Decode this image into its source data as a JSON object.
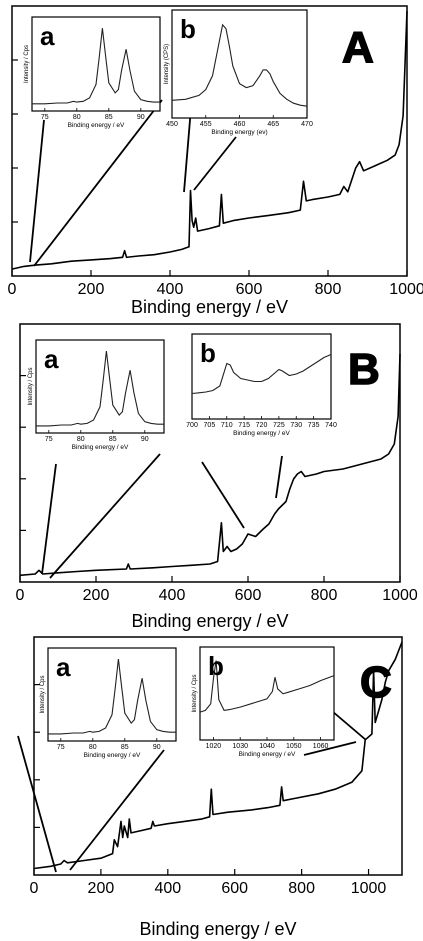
{
  "chart_data": [
    {
      "type": "line",
      "panel_label": "A",
      "xlabel": "Binding energy / eV",
      "ylabel": "",
      "xlim": [
        0,
        1000
      ],
      "xticks": [
        "0",
        "200",
        "400",
        "600",
        "800",
        "1000"
      ],
      "series": [
        {
          "x": [
            0,
            30,
            60,
            100,
            150,
            200,
            250,
            280,
            285,
            290,
            320,
            360,
            400,
            430,
            448,
            452,
            456,
            460,
            465,
            470,
            500,
            525,
            530,
            535,
            560,
            600,
            650,
            700,
            730,
            738,
            745,
            760,
            800,
            830,
            840,
            850,
            870,
            880,
            890,
            920,
            950,
            970,
            980,
            990,
            1000
          ],
          "y": [
            3,
            5,
            6,
            7,
            9,
            10,
            11,
            12,
            17,
            12,
            13,
            14,
            16,
            18,
            20,
            63,
            40,
            35,
            42,
            32,
            34,
            36,
            60,
            38,
            40,
            42,
            44,
            46,
            48,
            70,
            55,
            56,
            58,
            60,
            66,
            62,
            80,
            85,
            78,
            82,
            86,
            90,
            98,
            120,
            200
          ]
        }
      ],
      "insets": [
        {
          "label": "a",
          "ylabel": "Intensity / Cps",
          "xlabel": "Binding energy / eV",
          "xlim": [
            73,
            93
          ],
          "xticks": [
            "75",
            "80",
            "85",
            "90"
          ],
          "x": [
            73,
            75,
            77,
            78.5,
            79.5,
            80,
            81,
            82,
            83,
            83.5,
            84,
            84.5,
            85,
            86,
            86.5,
            87,
            87.7,
            88.3,
            89,
            90,
            91,
            92,
            93
          ],
          "y": [
            5,
            5,
            6,
            6,
            8,
            7,
            8,
            12,
            28,
            60,
            95,
            62,
            30,
            18,
            22,
            45,
            70,
            45,
            20,
            10,
            8,
            7,
            7
          ]
        },
        {
          "label": "b",
          "ylabel": "Intensity (CPS)",
          "xlabel": "Binding energy (ev)",
          "xlim": [
            450,
            470
          ],
          "xticks": [
            "450",
            "455",
            "460",
            "465",
            "470"
          ],
          "x": [
            450,
            452,
            454,
            455,
            456,
            457,
            457.5,
            458,
            458.5,
            459,
            460,
            461,
            462,
            463,
            463.5,
            464,
            464.5,
            465,
            466,
            467,
            468,
            469,
            470
          ],
          "y": [
            15,
            16,
            20,
            26,
            40,
            75,
            92,
            88,
            70,
            50,
            32,
            28,
            30,
            40,
            46,
            46,
            42,
            34,
            22,
            16,
            12,
            10,
            9
          ]
        }
      ]
    },
    {
      "type": "line",
      "panel_label": "B",
      "xlabel": "Binding energy / eV",
      "ylabel": "",
      "xlim": [
        0,
        1000
      ],
      "xticks": [
        "0",
        "200",
        "400",
        "600",
        "800",
        "1000"
      ],
      "series": [
        {
          "x": [
            0,
            40,
            50,
            60,
            100,
            150,
            200,
            280,
            285,
            290,
            350,
            400,
            450,
            500,
            520,
            530,
            535,
            545,
            555,
            570,
            585,
            600,
            620,
            640,
            655,
            670,
            680,
            700,
            710,
            720,
            730,
            740,
            750,
            780,
            800,
            850,
            900,
            950,
            970,
            985,
            995,
            1000
          ],
          "y": [
            3,
            4,
            7,
            4,
            5,
            6,
            7,
            8,
            12,
            8,
            9,
            10,
            11,
            12,
            14,
            45,
            22,
            26,
            22,
            24,
            28,
            36,
            34,
            40,
            44,
            52,
            56,
            62,
            72,
            80,
            84,
            86,
            82,
            84,
            86,
            88,
            92,
            96,
            100,
            108,
            130,
            180
          ]
        }
      ],
      "insets": [
        {
          "label": "a",
          "ylabel": "Intensity / Cps",
          "xlabel": "Binding energy / eV",
          "xlim": [
            73,
            93
          ],
          "xticks": [
            "75",
            "80",
            "85",
            "90"
          ],
          "x": [
            73,
            75,
            77,
            78.5,
            79.5,
            80,
            81,
            82,
            83,
            83.5,
            84,
            84.5,
            85,
            86,
            86.5,
            87,
            87.7,
            88.3,
            89,
            90,
            91,
            92,
            93
          ],
          "y": [
            5,
            5,
            6,
            6,
            8,
            7,
            8,
            12,
            28,
            60,
            95,
            62,
            30,
            18,
            22,
            45,
            72,
            45,
            20,
            10,
            8,
            7,
            7
          ]
        },
        {
          "label": "b",
          "ylabel": "",
          "xlabel": "Binding energy / eV",
          "xlim": [
            700,
            740
          ],
          "xticks": [
            "700",
            "705",
            "710",
            "715",
            "720",
            "725",
            "730",
            "735",
            "740"
          ],
          "x": [
            700,
            702,
            704,
            706,
            708,
            709,
            710,
            711,
            712,
            714,
            716,
            718,
            720,
            722,
            724,
            725,
            726,
            728,
            730,
            732,
            734,
            736,
            738,
            740
          ],
          "y": [
            30,
            31,
            32,
            34,
            40,
            55,
            70,
            68,
            58,
            50,
            48,
            46,
            46,
            50,
            58,
            62,
            60,
            54,
            56,
            60,
            66,
            72,
            78,
            82
          ]
        }
      ]
    },
    {
      "type": "line",
      "panel_label": "C",
      "xlabel": "Binding energy / eV",
      "ylabel": "",
      "xlim": [
        0,
        1100
      ],
      "xticks": [
        "0",
        "200",
        "400",
        "600",
        "800",
        "1000"
      ],
      "series": [
        {
          "x": [
            0,
            50,
            80,
            90,
            100,
            150,
            200,
            235,
            240,
            250,
            260,
            265,
            270,
            280,
            285,
            290,
            320,
            350,
            355,
            360,
            400,
            450,
            500,
            525,
            530,
            535,
            580,
            650,
            700,
            735,
            740,
            745,
            780,
            850,
            900,
            950,
            980,
            990,
            1010,
            1015,
            1020,
            1030,
            1040,
            1050,
            1060,
            1080,
            1100
          ],
          "y": [
            3,
            5,
            7,
            10,
            8,
            10,
            12,
            16,
            28,
            22,
            44,
            30,
            40,
            30,
            46,
            34,
            36,
            38,
            44,
            40,
            42,
            44,
            46,
            48,
            72,
            50,
            52,
            54,
            56,
            58,
            74,
            62,
            64,
            68,
            72,
            78,
            88,
            115,
            120,
            175,
            130,
            140,
            150,
            165,
            175,
            185,
            200
          ]
        }
      ],
      "insets": [
        {
          "label": "a",
          "ylabel": "Intensity / Cps",
          "xlabel": "Binding energy / eV",
          "xlim": [
            73,
            93
          ],
          "xticks": [
            "75",
            "80",
            "85",
            "90"
          ],
          "x": [
            73,
            75,
            77,
            78.5,
            79.5,
            80,
            81,
            82,
            83,
            83.5,
            84,
            84.5,
            85,
            86,
            86.5,
            87,
            87.7,
            88.3,
            89,
            90,
            91,
            92,
            93
          ],
          "y": [
            5,
            5,
            6,
            6,
            8,
            7,
            8,
            12,
            28,
            60,
            95,
            62,
            30,
            18,
            22,
            45,
            72,
            45,
            20,
            10,
            8,
            7,
            7
          ]
        },
        {
          "label": "b",
          "ylabel": "Intensity / Cps",
          "xlabel": "Binding energy / eV",
          "xlim": [
            1015,
            1065
          ],
          "xticks": [
            "1020",
            "1030",
            "1040",
            "1050",
            "1060"
          ],
          "x": [
            1015,
            1017,
            1019,
            1020,
            1021,
            1022,
            1024,
            1026,
            1030,
            1034,
            1038,
            1040,
            1042,
            1043,
            1044,
            1046,
            1048,
            1052,
            1056,
            1060,
            1065
          ],
          "y": [
            30,
            32,
            40,
            70,
            92,
            45,
            32,
            33,
            36,
            40,
            44,
            46,
            55,
            72,
            58,
            52,
            54,
            58,
            62,
            68,
            74
          ]
        }
      ]
    }
  ]
}
